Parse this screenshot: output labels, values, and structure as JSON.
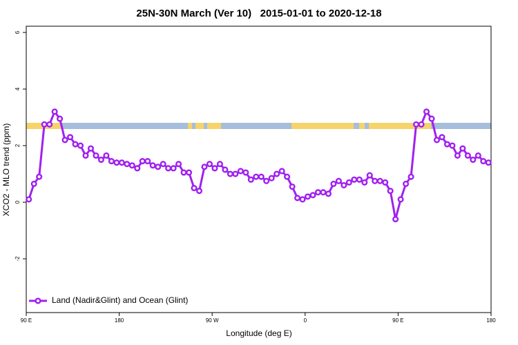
{
  "chart_data": {
    "type": "line",
    "title": "25N-30N March (Ver 10)   2015-01-01 to 2020-12-18",
    "xlabel": "Longitude (deg E)",
    "ylabel": "XCO2 - MLO trend (ppm)",
    "x": [
      92.5,
      97.5,
      102.5,
      107.5,
      112.5,
      117.5,
      122.5,
      127.5,
      132.5,
      137.5,
      142.5,
      147.5,
      152.5,
      157.5,
      162.5,
      167.5,
      172.5,
      177.5,
      182.5,
      187.5,
      192.5,
      197.5,
      202.5,
      207.5,
      212.5,
      217.5,
      222.5,
      227.5,
      232.5,
      237.5,
      242.5,
      247.5,
      252.5,
      257.5,
      262.5,
      267.5,
      272.5,
      277.5,
      282.5,
      287.5,
      292.5,
      297.5,
      302.5,
      307.5,
      312.5,
      317.5,
      322.5,
      327.5,
      332.5,
      337.5,
      342.5,
      347.5,
      352.5,
      357.5,
      362.5,
      367.5,
      372.5,
      377.5,
      382.5,
      387.5,
      392.5,
      397.5,
      402.5,
      407.5,
      412.5,
      417.5,
      422.5,
      427.5,
      432.5,
      437.5,
      442.5,
      447.5,
      452.5,
      457.5,
      462.5,
      467.5,
      472.5,
      477.5,
      482.5,
      487.5,
      492.5,
      497.5,
      502.5,
      507.5,
      512.5,
      517.5,
      522.5,
      527.5,
      532.5,
      537.5
    ],
    "series": [
      {
        "name": "Land (Nadir&Glint) and Ocean (Glint)",
        "color": "#a020f0",
        "values": [
          0.1,
          0.65,
          0.9,
          2.75,
          2.75,
          3.2,
          2.95,
          2.2,
          2.3,
          2.05,
          2.0,
          1.65,
          1.9,
          1.65,
          1.5,
          1.65,
          1.45,
          1.4,
          1.4,
          1.35,
          1.3,
          1.2,
          1.45,
          1.45,
          1.3,
          1.25,
          1.35,
          1.2,
          1.2,
          1.35,
          1.05,
          1.05,
          0.5,
          0.4,
          1.25,
          1.35,
          1.2,
          1.35,
          1.15,
          1.0,
          1.0,
          1.1,
          1.05,
          0.8,
          0.9,
          0.9,
          0.75,
          0.85,
          1.0,
          1.1,
          0.9,
          0.55,
          0.15,
          0.1,
          0.2,
          0.25,
          0.35,
          0.35,
          0.3,
          0.65,
          0.75,
          0.6,
          0.7,
          0.8,
          0.8,
          0.7,
          0.95,
          0.75,
          0.75,
          0.7,
          0.4,
          -0.6,
          0.1,
          0.65,
          0.9,
          2.75,
          2.75,
          3.2,
          2.95,
          2.2,
          2.3,
          2.05,
          2.0,
          1.65,
          1.9,
          1.65,
          1.5,
          1.65,
          1.45,
          1.4
        ]
      }
    ],
    "xlim": [
      90,
      540
    ],
    "xticks": [
      {
        "value": 90,
        "label": "90 E"
      },
      180,
      {
        "value": 270,
        "label": "90 W"
      },
      {
        "value": 360,
        "label": "0"
      },
      {
        "value": 450,
        "label": "90 E"
      },
      {
        "value": 540,
        "label": "180"
      }
    ],
    "ylim": [
      -3.9,
      6.22
    ],
    "yticks": [
      6,
      4,
      2,
      0,
      -2
    ],
    "legend": "bottom-left"
  }
}
